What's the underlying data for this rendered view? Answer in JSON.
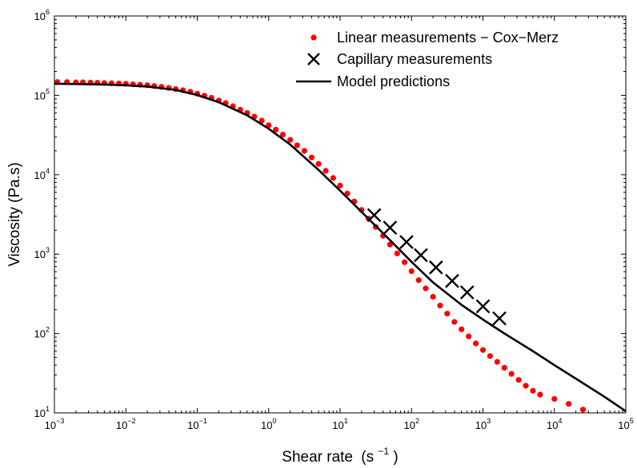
{
  "chart_data": {
    "type": "scatter",
    "xlabel": "Shear rate",
    "xlabel_unit": "(s",
    "xlabel_unit_exp": "−1",
    "xlabel_unit_close": ")",
    "ylabel": "Viscosity (Pa.s)",
    "x_scale": "log",
    "y_scale": "log",
    "xlim": [
      0.001,
      100000
    ],
    "ylim": [
      10,
      1000000
    ],
    "x_ticks": [
      {
        "base": "10",
        "exp": "−3",
        "value": 0.001
      },
      {
        "base": "10",
        "exp": "−2",
        "value": 0.01
      },
      {
        "base": "10",
        "exp": "−1",
        "value": 0.1
      },
      {
        "base": "10",
        "exp": "0",
        "value": 1
      },
      {
        "base": "10",
        "exp": "1",
        "value": 10
      },
      {
        "base": "10",
        "exp": "2",
        "value": 100
      },
      {
        "base": "10",
        "exp": "3",
        "value": 1000
      },
      {
        "base": "10",
        "exp": "4",
        "value": 10000
      },
      {
        "base": "10",
        "exp": "5",
        "value": 100000
      }
    ],
    "y_ticks": [
      {
        "base": "10",
        "exp": "1",
        "value": 10
      },
      {
        "base": "10",
        "exp": "2",
        "value": 100
      },
      {
        "base": "10",
        "exp": "3",
        "value": 1000
      },
      {
        "base": "10",
        "exp": "4",
        "value": 10000
      },
      {
        "base": "10",
        "exp": "5",
        "value": 100000
      },
      {
        "base": "10",
        "exp": "6",
        "value": 1000000
      }
    ],
    "grid": false,
    "legend_position": "top-right",
    "series": [
      {
        "name": "Linear measurements − Cox−Merz",
        "kind": "dots",
        "color": "#ff0000",
        "x": [
          0.0011,
          0.0015,
          0.002,
          0.0025,
          0.0032,
          0.004,
          0.005,
          0.0063,
          0.008,
          0.01,
          0.0126,
          0.0158,
          0.02,
          0.025,
          0.0316,
          0.04,
          0.05,
          0.063,
          0.08,
          0.1,
          0.126,
          0.158,
          0.2,
          0.25,
          0.316,
          0.4,
          0.5,
          0.63,
          0.8,
          1.0,
          1.26,
          1.58,
          2.0,
          2.5,
          3.16,
          4.0,
          5.0,
          6.3,
          8.0,
          10,
          12.6,
          15.8,
          20,
          25,
          31.6,
          40,
          50,
          63,
          80,
          100,
          126,
          158,
          200,
          251,
          316,
          398,
          501,
          631,
          794,
          1000,
          1259,
          1585,
          1995,
          2512,
          3162,
          3981,
          5012,
          6310,
          10000,
          15850,
          25120
        ],
        "y": [
          147000,
          147000,
          146000,
          146000,
          145000,
          144000,
          143000,
          142000,
          141000,
          140000,
          138000,
          136000,
          134000,
          131000,
          128000,
          124000,
          120000,
          116000,
          111000,
          105000,
          99000,
          93000,
          86000,
          80000,
          73000,
          66000,
          60000,
          54000,
          48000,
          42000,
          37000,
          32000,
          27500,
          23500,
          20000,
          16500,
          13700,
          11200,
          9100,
          7300,
          5800,
          4600,
          3600,
          2800,
          2200,
          1700,
          1320,
          1020,
          790,
          610,
          470,
          370,
          290,
          225,
          178,
          140,
          113,
          92,
          75,
          62,
          52,
          44,
          37,
          31,
          26,
          22,
          19,
          17,
          15,
          13,
          11
        ]
      },
      {
        "name": "Capillary measurements",
        "kind": "cross",
        "color": "#000000",
        "x": [
          30,
          50,
          85,
          135,
          220,
          370,
          600,
          1000,
          1700
        ],
        "y": [
          3100,
          2150,
          1420,
          970,
          680,
          460,
          330,
          220,
          155
        ]
      },
      {
        "name": "Model predictions",
        "kind": "line",
        "color": "#000000",
        "x": [
          0.001,
          0.002,
          0.005,
          0.01,
          0.02,
          0.05,
          0.1,
          0.2,
          0.5,
          1,
          2,
          5,
          10,
          20,
          50,
          100,
          200,
          500,
          1000,
          2000,
          5000,
          10000,
          20000,
          50000,
          100000
        ],
        "y": [
          140000,
          139000,
          137000,
          134000,
          129000,
          117000,
          101000,
          82000,
          56000,
          38000,
          24000,
          11500,
          6300,
          3400,
          1500,
          800,
          440,
          230,
          150,
          100,
          60,
          40,
          27,
          16,
          10.5
        ]
      }
    ]
  }
}
